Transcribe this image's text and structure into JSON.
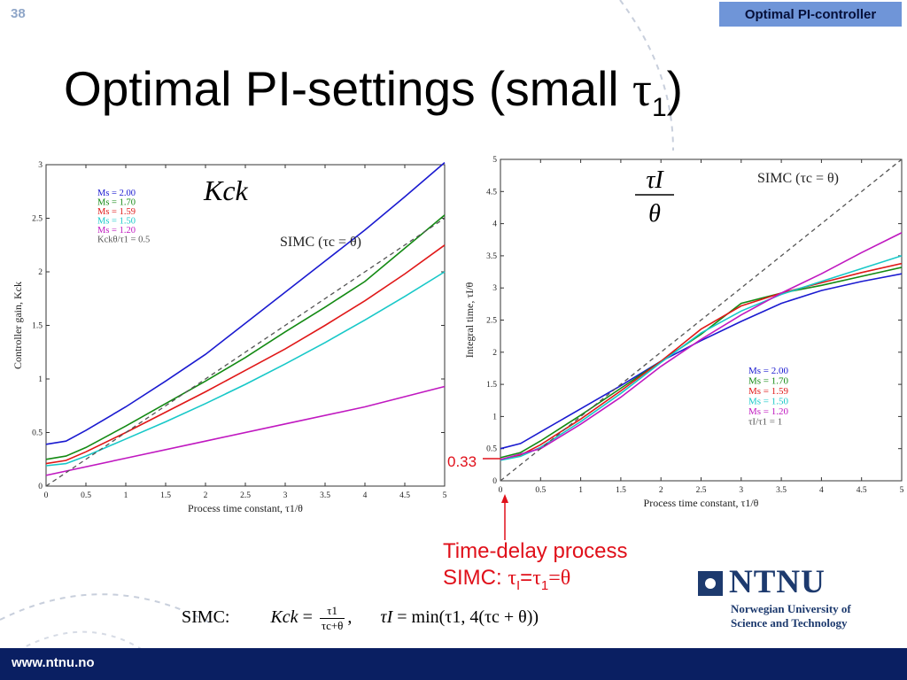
{
  "slide": {
    "number": "38",
    "topic": "Optimal PI-controller",
    "title_main": "Optimal PI-settings (small ",
    "title_tau": "τ",
    "title_sub": "1",
    "title_close": ")",
    "footer_url": "www.ntnu.no"
  },
  "annotation": {
    "label_033": "0.33",
    "line1": "Time-delay process",
    "line2_prefix": "SIMC: ",
    "tau": "τ",
    "sub_i": "I",
    "eq": "=",
    "sub_1": "1",
    "eq2": "=",
    "theta": "θ"
  },
  "logo": {
    "name": "NTNU",
    "sub1": "Norwegian University of",
    "sub2": "Science and Technology"
  },
  "formula": {
    "prefix": "SIMC:",
    "kck": "Kck",
    "eq": "=",
    "num": "τ1",
    "den": "τc+θ",
    "comma": ",",
    "taui": "τI",
    "eq2": "=",
    "rhs": "min(τ1, 4(τc + θ))"
  },
  "colors": {
    "ms200": "#1a1ad0",
    "ms170": "#138a13",
    "ms159": "#e01818",
    "ms150": "#18c8c8",
    "ms120": "#c018c0",
    "simc": "#555555",
    "annot": "#e0101a",
    "footer": "#0a1f62",
    "topic_bg": "#6f95d8"
  },
  "chart_data": [
    {
      "type": "line",
      "title": "Kck",
      "xlabel": "Process time constant, τ1/θ",
      "ylabel": "Controller gain, Kck",
      "xlim": [
        0,
        5
      ],
      "ylim": [
        0,
        3
      ],
      "xticks": [
        "0",
        "0.5",
        "1",
        "1.5",
        "2",
        "2.5",
        "3",
        "3.5",
        "4",
        "4.5",
        "5"
      ],
      "yticks": [
        "0",
        "0.5",
        "1",
        "1.5",
        "2",
        "2.5",
        "3"
      ],
      "annotation": "SIMC (τc = θ)",
      "legend_position": "top-left",
      "legend": [
        "Ms = 2.00",
        "Ms = 1.70",
        "Ms = 1.59",
        "Ms = 1.50",
        "Ms = 1.20",
        "Kckθ/τ1 = 0.5"
      ],
      "series": [
        {
          "name": "Ms = 2.00",
          "color": "#1a1ad0",
          "x": [
            0,
            0.25,
            0.5,
            1,
            1.5,
            2,
            2.5,
            3,
            3.5,
            4,
            4.5,
            5
          ],
          "y": [
            0.39,
            0.42,
            0.52,
            0.74,
            0.98,
            1.23,
            1.52,
            1.81,
            2.1,
            2.39,
            2.7,
            3.02
          ]
        },
        {
          "name": "Ms = 1.70",
          "color": "#138a13",
          "x": [
            0,
            0.25,
            0.5,
            1,
            1.5,
            2,
            2.5,
            3,
            3.5,
            4,
            4.5,
            5
          ],
          "y": [
            0.25,
            0.28,
            0.36,
            0.56,
            0.77,
            0.98,
            1.2,
            1.44,
            1.67,
            1.91,
            2.22,
            2.53
          ]
        },
        {
          "name": "Ms = 1.59",
          "color": "#e01818",
          "x": [
            0,
            0.25,
            0.5,
            1,
            1.5,
            2,
            2.5,
            3,
            3.5,
            4,
            4.5,
            5
          ],
          "y": [
            0.21,
            0.24,
            0.32,
            0.5,
            0.69,
            0.88,
            1.08,
            1.28,
            1.5,
            1.73,
            1.98,
            2.25
          ]
        },
        {
          "name": "Ms = 1.50",
          "color": "#18c8c8",
          "x": [
            0,
            0.25,
            0.5,
            1,
            1.5,
            2,
            2.5,
            3,
            3.5,
            4,
            4.5,
            5
          ],
          "y": [
            0.19,
            0.21,
            0.28,
            0.44,
            0.6,
            0.77,
            0.95,
            1.14,
            1.34,
            1.55,
            1.77,
            2.0
          ]
        },
        {
          "name": "Ms = 1.20",
          "color": "#c018c0",
          "x": [
            0,
            1,
            2,
            3,
            4,
            5
          ],
          "y": [
            0.1,
            0.26,
            0.42,
            0.58,
            0.74,
            0.93
          ]
        },
        {
          "name": "Kckθ/τ1 = 0.5",
          "color": "#555555",
          "dashed": true,
          "x": [
            0,
            5
          ],
          "y": [
            0,
            2.5
          ]
        }
      ]
    },
    {
      "type": "line",
      "title": "τI/θ",
      "xlabel": "Process time constant, τ1/θ",
      "ylabel": "Integral time, τI/θ",
      "xlim": [
        0,
        5
      ],
      "ylim": [
        0,
        5
      ],
      "xticks": [
        "0",
        "0.5",
        "1",
        "1.5",
        "2",
        "2.5",
        "3",
        "3.5",
        "4",
        "4.5",
        "5"
      ],
      "yticks": [
        "0",
        "0.5",
        "1",
        "1.5",
        "2",
        "2.5",
        "3",
        "3.5",
        "4",
        "4.5",
        "5"
      ],
      "annotation": "SIMC (τc = θ)",
      "legend_position": "bottom-right",
      "legend": [
        "Ms = 2.00",
        "Ms = 1.70",
        "Ms = 1.59",
        "Ms = 1.50",
        "Ms = 1.20",
        "τI/τ1 = 1"
      ],
      "series": [
        {
          "name": "Ms = 2.00",
          "color": "#1a1ad0",
          "x": [
            0,
            0.25,
            0.5,
            1,
            1.5,
            2,
            2.5,
            3,
            3.5,
            4,
            4.5,
            5
          ],
          "y": [
            0.5,
            0.58,
            0.76,
            1.12,
            1.48,
            1.86,
            2.18,
            2.48,
            2.76,
            2.96,
            3.1,
            3.22
          ]
        },
        {
          "name": "Ms = 1.70",
          "color": "#138a13",
          "x": [
            0,
            0.25,
            0.5,
            1,
            1.5,
            2,
            2.5,
            3,
            3.5,
            4,
            4.5,
            5
          ],
          "y": [
            0.36,
            0.44,
            0.62,
            1.02,
            1.44,
            1.86,
            2.28,
            2.76,
            2.92,
            3.04,
            3.18,
            3.32
          ]
        },
        {
          "name": "Ms = 1.59",
          "color": "#e01818",
          "x": [
            0,
            0.25,
            0.5,
            1,
            1.5,
            2,
            2.5,
            3,
            3.5,
            4,
            4.5,
            5
          ],
          "y": [
            0.33,
            0.4,
            0.56,
            0.96,
            1.4,
            1.86,
            2.36,
            2.72,
            2.92,
            3.08,
            3.24,
            3.38
          ]
        },
        {
          "name": "Ms = 1.50",
          "color": "#18c8c8",
          "x": [
            0,
            0.25,
            0.5,
            1,
            1.5,
            2,
            2.5,
            3,
            3.5,
            4,
            4.5,
            5
          ],
          "y": [
            0.32,
            0.38,
            0.52,
            0.92,
            1.36,
            1.84,
            2.3,
            2.64,
            2.9,
            3.1,
            3.3,
            3.5
          ]
        },
        {
          "name": "Ms = 1.20",
          "color": "#c018c0",
          "x": [
            0,
            0.5,
            1,
            1.5,
            2,
            2.5,
            3,
            3.5,
            4,
            4.5,
            5
          ],
          "y": [
            0.33,
            0.5,
            0.88,
            1.3,
            1.78,
            2.2,
            2.58,
            2.92,
            3.22,
            3.55,
            3.86
          ]
        },
        {
          "name": "τI/τ1 = 1",
          "color": "#555555",
          "dashed": true,
          "x": [
            0,
            5
          ],
          "y": [
            0,
            5
          ]
        }
      ]
    }
  ]
}
